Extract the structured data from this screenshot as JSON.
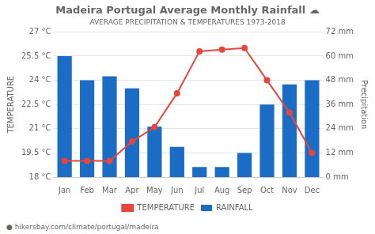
{
  "chart_data": {
    "type": "bar",
    "title": "Madeira Portugal Average Monthly Rainfall ☁",
    "subtitle": "AVERAGE PRECIPITATION & TEMPERATURES 1973-2018",
    "footer": "● hikersbay.com/climate/portugal/madeira",
    "categories": [
      "Jan",
      "Feb",
      "Mar",
      "Apr",
      "May",
      "Jun",
      "Jul",
      "Aug",
      "Sep",
      "Oct",
      "Nov",
      "Dec"
    ],
    "series": [
      {
        "name": "TEMPERATURE",
        "type": "line",
        "color": "#e8453c",
        "marker": "circle",
        "values": [
          19.0,
          19.0,
          19.0,
          20.2,
          21.1,
          23.2,
          25.8,
          25.9,
          26.0,
          24.0,
          22.0,
          19.5
        ]
      },
      {
        "name": "RAINFALL",
        "type": "bar",
        "color": "#1a6cc4",
        "axis": "y2",
        "values": [
          60,
          48,
          50,
          44,
          25,
          15,
          5,
          5,
          12,
          36,
          46,
          48
        ]
      }
    ],
    "ylabel": "TEMPERATURE",
    "y2label": "Precipitation",
    "ylim": [
      18,
      27
    ],
    "yticks": [
      {
        "value": 18,
        "label": "18 °C"
      },
      {
        "value": 19.5,
        "label": "19.5 °C"
      },
      {
        "value": 21,
        "label": "21 °C"
      },
      {
        "value": 22.5,
        "label": "22.5 °C"
      },
      {
        "value": 24,
        "label": "24 °C"
      },
      {
        "value": 25.5,
        "label": "25.5 °C"
      },
      {
        "value": 27,
        "label": "27 °C"
      }
    ],
    "y2lim": [
      0,
      72
    ],
    "y2ticks": [
      {
        "value": 0,
        "label": "0 mm"
      },
      {
        "value": 12,
        "label": "12 mm"
      },
      {
        "value": 24,
        "label": "24 mm"
      },
      {
        "value": 36,
        "label": "36 mm"
      },
      {
        "value": 48,
        "label": "48 mm"
      },
      {
        "value": 60,
        "label": "60 mm"
      },
      {
        "value": 72,
        "label": "72 mm"
      }
    ],
    "grid": true,
    "legend": "bottom"
  }
}
